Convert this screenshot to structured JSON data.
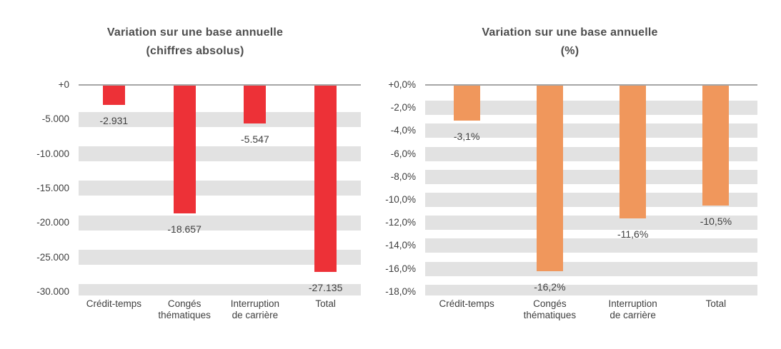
{
  "page": {
    "background_color": "#ffffff",
    "text_color": "#3f3f3f",
    "title_color": "#4d4d4d"
  },
  "chart_data": [
    {
      "type": "bar",
      "title": "Variation sur une base annuelle",
      "subtitle": "(chiffres absolus)",
      "categories": [
        "Crédit-temps",
        "Congés\nthématiques",
        "Interruption\nde carrière",
        "Total"
      ],
      "values": [
        -2931,
        -18657,
        -5547,
        -27135
      ],
      "data_labels": [
        "-2.931",
        "-18.657",
        "-5.547",
        "-27.135"
      ],
      "xlabel": "",
      "ylabel": "",
      "ylim": [
        0,
        -30000
      ],
      "y_ticks": [
        {
          "v": 0,
          "label": "+0"
        },
        {
          "v": -5000,
          "label": "-5.000"
        },
        {
          "v": -10000,
          "label": "-10.000"
        },
        {
          "v": -15000,
          "label": "-15.000"
        },
        {
          "v": -20000,
          "label": "-20.000"
        },
        {
          "v": -25000,
          "label": "-25.000"
        },
        {
          "v": -30000,
          "label": "-30.000"
        }
      ],
      "legend": "none",
      "grid": "horizontal-stripes",
      "bar_color": "#ed3137",
      "stripe_color": "#e2e2e2",
      "axis_line_color": "#a6a6a6"
    },
    {
      "type": "bar",
      "title": "Variation sur une base annuelle",
      "subtitle": "(%)",
      "categories": [
        "Crédit-temps",
        "Congés\nthématiques",
        "Interruption\nde carrière",
        "Total"
      ],
      "values": [
        -3.1,
        -16.2,
        -11.6,
        -10.5
      ],
      "data_labels": [
        "-3,1%",
        "-16,2%",
        "-11,6%",
        "-10,5%"
      ],
      "xlabel": "",
      "ylabel": "",
      "ylim": [
        0,
        -18
      ],
      "y_ticks": [
        {
          "v": 0,
          "label": "+0,0%"
        },
        {
          "v": -2,
          "label": "-2,0%"
        },
        {
          "v": -4,
          "label": "-4,0%"
        },
        {
          "v": -6,
          "label": "-6,0%"
        },
        {
          "v": -8,
          "label": "-8,0%"
        },
        {
          "v": -10,
          "label": "-10,0%"
        },
        {
          "v": -12,
          "label": "-12,0%"
        },
        {
          "v": -14,
          "label": "-14,0%"
        },
        {
          "v": -16,
          "label": "-16,0%"
        },
        {
          "v": -18,
          "label": "-18,0%"
        }
      ],
      "legend": "none",
      "grid": "horizontal-stripes",
      "bar_color": "#f0975c",
      "stripe_color": "#e2e2e2",
      "axis_line_color": "#a6a6a6"
    }
  ]
}
